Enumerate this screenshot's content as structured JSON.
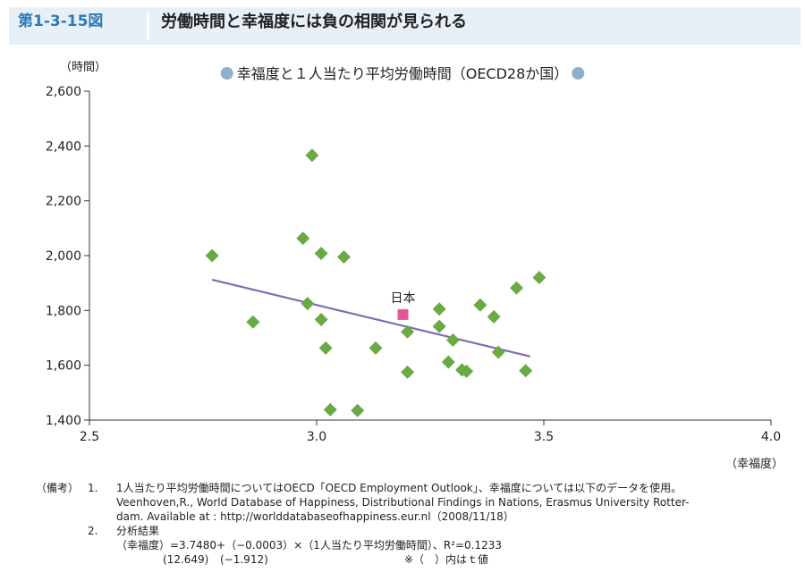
{
  "header": {
    "figure_number": "第1-3-15図",
    "title": "労働時間と幸福度には負の相関が見られる"
  },
  "chart_data": {
    "type": "scatter",
    "title": "幸福度と１人当たり平均労働時間（OECD28か国）",
    "title_bullet_color": "#8fb0cc",
    "xlabel": "（幸福度）",
    "ylabel": "（時間）",
    "xlim": [
      2.5,
      4.0
    ],
    "ylim": [
      1400,
      2600
    ],
    "x_ticks": [
      "2.5",
      "3.0",
      "3.5",
      "4.0"
    ],
    "y_ticks": [
      "1,400",
      "1,600",
      "1,800",
      "2,000",
      "2,200",
      "2,400",
      "2,600"
    ],
    "grid": false,
    "colors": {
      "points": "#6aaa44",
      "highlight": "#e8559a",
      "trend": "#7a6fb0"
    },
    "series": [
      {
        "marker": "diamond",
        "points": [
          {
            "x": 2.77,
            "y": 2000
          },
          {
            "x": 2.86,
            "y": 1758
          },
          {
            "x": 2.97,
            "y": 2063
          },
          {
            "x": 2.98,
            "y": 1825
          },
          {
            "x": 2.99,
            "y": 2366
          },
          {
            "x": 3.01,
            "y": 2008
          },
          {
            "x": 3.01,
            "y": 1767
          },
          {
            "x": 3.02,
            "y": 1663
          },
          {
            "x": 3.03,
            "y": 1438
          },
          {
            "x": 3.06,
            "y": 1995
          },
          {
            "x": 3.09,
            "y": 1435
          },
          {
            "x": 3.13,
            "y": 1663
          },
          {
            "x": 3.2,
            "y": 1722
          },
          {
            "x": 3.2,
            "y": 1575
          },
          {
            "x": 3.27,
            "y": 1805
          },
          {
            "x": 3.27,
            "y": 1742
          },
          {
            "x": 3.29,
            "y": 1612
          },
          {
            "x": 3.3,
            "y": 1692
          },
          {
            "x": 3.32,
            "y": 1583
          },
          {
            "x": 3.33,
            "y": 1578
          },
          {
            "x": 3.36,
            "y": 1820
          },
          {
            "x": 3.39,
            "y": 1777
          },
          {
            "x": 3.4,
            "y": 1648
          },
          {
            "x": 3.44,
            "y": 1882
          },
          {
            "x": 3.46,
            "y": 1580
          },
          {
            "x": 3.49,
            "y": 1920
          }
        ]
      },
      {
        "marker": "square",
        "label": "日本",
        "points": [
          {
            "x": 3.19,
            "y": 1785
          }
        ]
      }
    ],
    "trend_line": [
      {
        "x": 2.77,
        "y": 1912
      },
      {
        "x": 3.47,
        "y": 1632
      }
    ]
  },
  "notes": {
    "head": "（備考）",
    "items": [
      {
        "num": "1.",
        "lines": [
          "1人当たり平均労働時間についてはOECD「OECD Employment Outlook」、幸福度については以下のデータを使用。",
          "Veenhoven,R., World Database of Happiness, Distributional Findings in Nations, Erasmus University Rotter-",
          "dam. Available at : http://worlddatabaseofhappiness.eur.nl（2008/11/18）"
        ]
      },
      {
        "num": "2.",
        "lines": [
          "分析結果"
        ]
      }
    ],
    "formula": "（幸福度）=3.7480+（−0.0003）×（1人当たり平均労働時間）、R²=0.1233",
    "t_values": [
      "(12.649)",
      "(−1.912)"
    ],
    "t_note": "※（　）内はｔ値"
  }
}
